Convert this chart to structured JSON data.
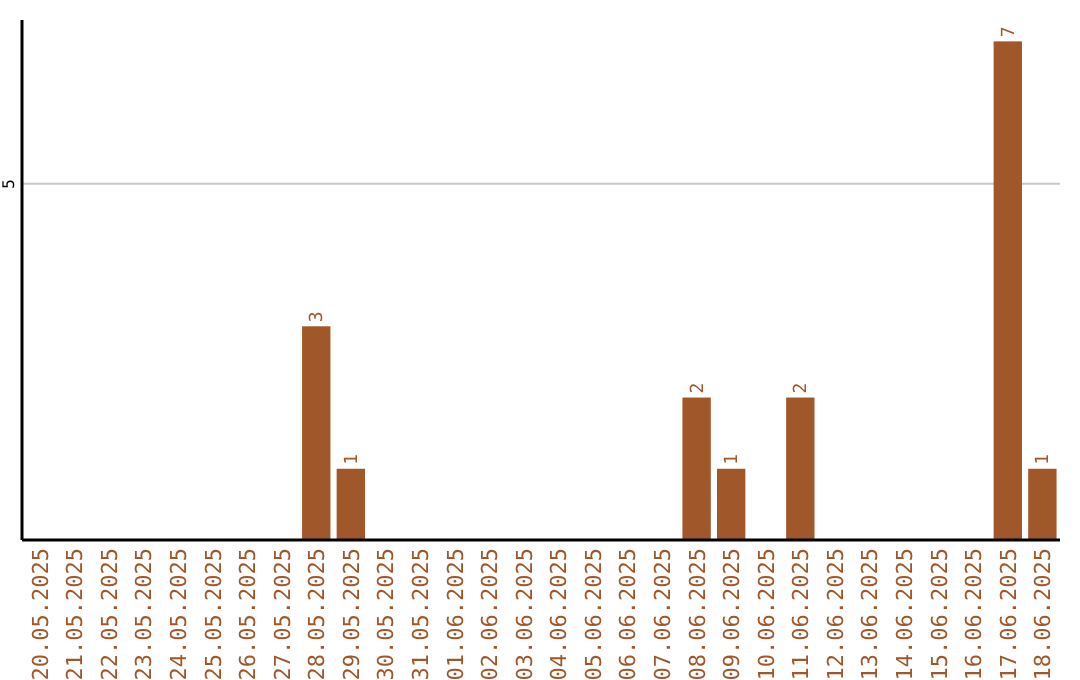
{
  "chart_data": {
    "type": "bar",
    "categories": [
      "20.05.2025",
      "21.05.2025",
      "22.05.2025",
      "23.05.2025",
      "24.05.2025",
      "25.05.2025",
      "26.05.2025",
      "27.05.2025",
      "28.05.2025",
      "29.05.2025",
      "30.05.2025",
      "31.05.2025",
      "01.06.2025",
      "02.06.2025",
      "03.06.2025",
      "04.06.2025",
      "05.06.2025",
      "06.06.2025",
      "07.06.2025",
      "08.06.2025",
      "09.06.2025",
      "10.06.2025",
      "11.06.2025",
      "12.06.2025",
      "13.06.2025",
      "14.06.2025",
      "15.06.2025",
      "16.06.2025",
      "17.06.2025",
      "18.06.2025"
    ],
    "values": [
      0,
      0,
      0,
      0,
      0,
      0,
      0,
      0,
      3,
      1,
      0,
      0,
      0,
      0,
      0,
      0,
      0,
      0,
      0,
      2,
      1,
      0,
      2,
      0,
      0,
      0,
      0,
      0,
      7,
      1
    ],
    "value_labels": [
      null,
      null,
      null,
      null,
      null,
      null,
      null,
      null,
      "3",
      "1",
      null,
      null,
      null,
      null,
      null,
      null,
      null,
      null,
      null,
      "2",
      "1",
      null,
      "2",
      null,
      null,
      null,
      null,
      null,
      "7",
      "1"
    ],
    "color": "#a0572a",
    "ylim": [
      0,
      7.3
    ],
    "yticks": [
      5
    ],
    "grid": "y"
  }
}
